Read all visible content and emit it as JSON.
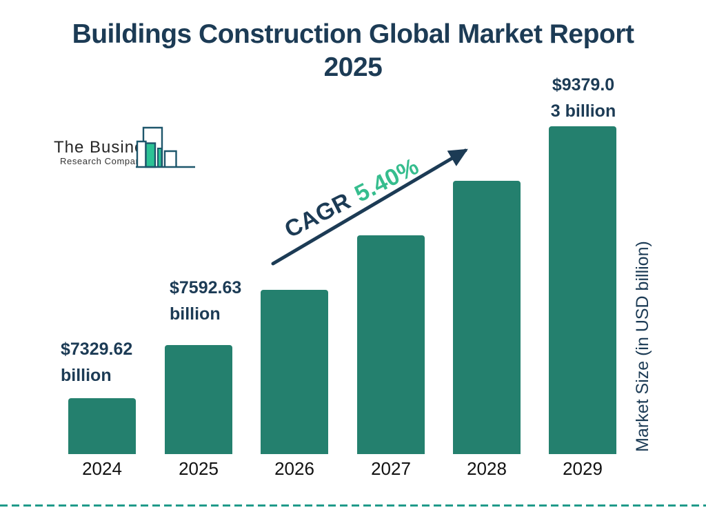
{
  "title": {
    "line1": "Buildings Construction Global Market Report",
    "line2": "2025"
  },
  "logo": {
    "line1": "The Business",
    "line2": "Research Company"
  },
  "cagr": {
    "label": "CAGR",
    "value": "5.40%"
  },
  "y_axis_label": "Market Size (in USD billion)",
  "colors": {
    "navy": "#1c3b55",
    "bar_teal": "#24806e",
    "accent_green": "#36bd8e",
    "dashed_teal": "#1f9a8a",
    "logo_outline": "#1d566b",
    "logo_green": "#2cc295"
  },
  "chart_data": {
    "type": "bar",
    "title": "Buildings Construction Global Market Report 2025",
    "categories": [
      "2024",
      "2025",
      "2026",
      "2027",
      "2028",
      "2029"
    ],
    "values": [
      7329.62,
      7592.63,
      8002.6,
      8434.8,
      8890.3,
      9379.03
    ],
    "estimated_indices": [
      2,
      3,
      4
    ],
    "value_label_lines": [
      [
        "$7329.62",
        "billion"
      ],
      [
        "$7592.63",
        "billion"
      ],
      null,
      null,
      null,
      [
        "$9379.0",
        "3 billion"
      ]
    ],
    "labeled_values": {
      "2024": "$7329.62 billion",
      "2025": "$7592.63 billion",
      "2029": "$9379.03 billion"
    },
    "cagr_percent": 5.4,
    "xlabel": "",
    "ylabel": "Market Size (in USD billion)",
    "ylim_note": "bar heights drawn with equal visual steps, not zero-based",
    "legend": false,
    "grid": false
  }
}
